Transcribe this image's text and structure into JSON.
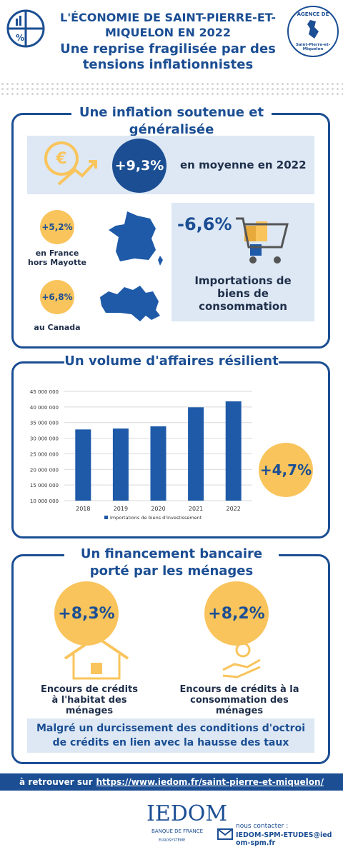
{
  "header": {
    "title": "L'ÉCONOMIE DE SAINT-PIERRE-ET-MIQUELON EN 2022",
    "subtitle": "Une reprise fragilisée par des tensions inflationnistes",
    "logo_top": "AGENCE DE",
    "logo_bottom": "Saint-Pierre-et-Miquelon"
  },
  "inflation": {
    "title": "Une inflation soutenue et généralisée",
    "main_value": "+9,3%",
    "main_text": "en moyenne en 2022",
    "france_value": "+5,2%",
    "france_text": "en France hors Mayotte",
    "canada_value": "+6,8%",
    "canada_text": "au Canada",
    "imports_value": "-6,6%",
    "imports_text": "Importations de biens de consommation"
  },
  "business": {
    "title": "Un volume d'affaires résilient",
    "growth": "+4,7%"
  },
  "chart_data": {
    "type": "bar",
    "categories": [
      "2018",
      "2019",
      "2020",
      "2021",
      "2022"
    ],
    "series": [
      {
        "name": "Importations de biens d'investissement",
        "color": "#1e5aa8",
        "values": [
          32800000,
          33100000,
          33800000,
          39900000,
          41800000
        ]
      }
    ],
    "ylim": [
      10000000,
      45000000
    ],
    "yticks": [
      {
        "value": 10000000,
        "label": "10 000 000"
      },
      {
        "value": 15000000,
        "label": "15 000 000"
      },
      {
        "value": 20000000,
        "label": "20 000 000"
      },
      {
        "value": 25000000,
        "label": "25 000 000"
      },
      {
        "value": 30000000,
        "label": "30 000 000"
      },
      {
        "value": 35000000,
        "label": "35 000 000"
      },
      {
        "value": 40000000,
        "label": "40 000 000"
      },
      {
        "value": 45000000,
        "label": "45 000 000"
      }
    ],
    "grid": true,
    "legend": "bottom"
  },
  "financing": {
    "title": "Un financement bancaire porté par les ménages",
    "housing_value": "+8,3%",
    "housing_text": "Encours de crédits à l'habitat des ménages",
    "consumption_value": "+8,2%",
    "consumption_text": "Encours de crédits à la consommation des ménages",
    "note": "Malgré un durcissement des conditions d'octroi de crédits en lien avec la hausse des taux"
  },
  "footer": {
    "prefix": "à retrouver sur",
    "url": "https://www.iedom.fr/saint-pierre-et-miquelon/",
    "logo": "IEDOM",
    "bank": "BANQUE DE FRANCE",
    "euro": "EUROSYSTÈME",
    "contact_label": "nous contacter :",
    "email": "IEDOM-SPM-ETUDES@iedom-spm.fr"
  }
}
